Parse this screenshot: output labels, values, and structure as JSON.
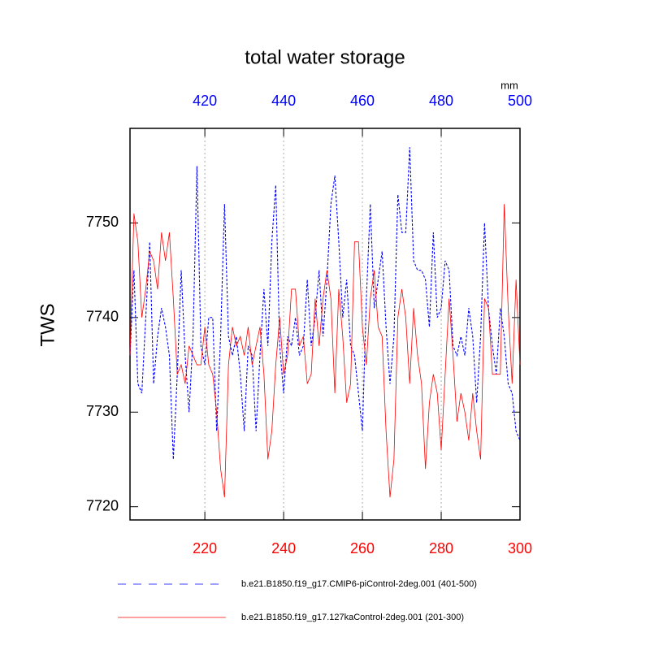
{
  "chart_data": {
    "type": "line",
    "title": "total water storage",
    "ylabel": "TWS",
    "units": "mm",
    "xlim": [
      201,
      300
    ],
    "xticks": [
      220,
      240,
      260,
      280,
      300
    ],
    "xtick_color": "#ff0000",
    "x2lim": [
      401,
      500
    ],
    "x2ticks": [
      420,
      440,
      460,
      480,
      500
    ],
    "x2tick_color": "#0000ff",
    "ylim": [
      7718.6,
      7760
    ],
    "yticks": [
      7720,
      7730,
      7740,
      7750
    ],
    "grid": "x",
    "series": [
      {
        "name": "b.e21.B1850.f19_g17.CMIP6-piControl-2deg.001 (401-500)",
        "color": "#0000ff",
        "dash": true,
        "xaxis": "x2",
        "x": [
          401,
          402,
          403,
          404,
          405,
          406,
          407,
          408,
          409,
          410,
          411,
          412,
          413,
          414,
          415,
          416,
          417,
          418,
          419,
          420,
          421,
          422,
          423,
          424,
          425,
          426,
          427,
          428,
          429,
          430,
          431,
          432,
          433,
          434,
          435,
          436,
          437,
          438,
          439,
          440,
          441,
          442,
          443,
          444,
          445,
          446,
          447,
          448,
          449,
          450,
          451,
          452,
          453,
          454,
          455,
          456,
          457,
          458,
          459,
          460,
          461,
          462,
          463,
          464,
          465,
          466,
          467,
          468,
          469,
          470,
          471,
          472,
          473,
          474,
          475,
          476,
          477,
          478,
          479,
          480,
          481,
          482,
          483,
          484,
          485,
          486,
          487,
          488,
          489,
          490,
          491,
          492,
          493,
          494,
          495,
          496,
          497,
          498,
          499,
          500
        ],
        "values": [
          7736,
          7745,
          7733,
          7732,
          7740,
          7748,
          7733,
          7738,
          7741,
          7739,
          7736,
          7725,
          7734,
          7745,
          7736,
          7730,
          7738,
          7756,
          7737,
          7735,
          7740,
          7740,
          7728,
          7738,
          7752,
          7738,
          7736,
          7738,
          7734,
          7728,
          7737,
          7736,
          7728,
          7736,
          7743,
          7737,
          7748,
          7754,
          7737,
          7732,
          7738,
          7737,
          7740,
          7736,
          7737,
          7744,
          7737,
          7740,
          7745,
          7738,
          7744,
          7752,
          7755,
          7748,
          7740,
          7744,
          7737,
          7736,
          7732,
          7728,
          7742,
          7752,
          7741,
          7744,
          7747,
          7739,
          7733,
          7738,
          7753,
          7749,
          7749,
          7758,
          7746,
          7745,
          7745,
          7744,
          7739,
          7749,
          7740,
          7741,
          7746,
          7745,
          7737,
          7736,
          7738,
          7736,
          7741,
          7738,
          7731,
          7738,
          7750,
          7741,
          7737,
          7734,
          7741,
          7738,
          7733,
          7732,
          7728,
          7727
        ]
      },
      {
        "name": "b.e21.B1850.f19_g17.127kaControl-2deg.001 (201-300)",
        "color": "#ff0000",
        "dash": false,
        "xaxis": "x",
        "x": [
          201,
          202,
          203,
          204,
          205,
          206,
          207,
          208,
          209,
          210,
          211,
          212,
          213,
          214,
          215,
          216,
          217,
          218,
          219,
          220,
          221,
          222,
          223,
          224,
          225,
          226,
          227,
          228,
          229,
          230,
          231,
          232,
          233,
          234,
          235,
          236,
          237,
          238,
          239,
          240,
          241,
          242,
          243,
          244,
          245,
          246,
          247,
          248,
          249,
          250,
          251,
          252,
          253,
          254,
          255,
          256,
          257,
          258,
          259,
          260,
          261,
          262,
          263,
          264,
          265,
          266,
          267,
          268,
          269,
          270,
          271,
          272,
          273,
          274,
          275,
          276,
          277,
          278,
          279,
          280,
          281,
          282,
          283,
          284,
          285,
          286,
          287,
          288,
          289,
          290,
          291,
          292,
          293,
          294,
          295,
          296,
          297,
          298,
          299,
          300
        ],
        "values": [
          7736,
          7751,
          7748,
          7740,
          7743,
          7747,
          7746,
          7743,
          7749,
          7746,
          7749,
          7742,
          7734,
          7735,
          7733,
          7737,
          7736,
          7735,
          7735,
          7739,
          7735,
          7734,
          7730,
          7724,
          7721,
          7735,
          7739,
          7737,
          7738,
          7736,
          7739,
          7735,
          7737,
          7739,
          7734,
          7725,
          7728,
          7735,
          7740,
          7734,
          7736,
          7743,
          7743,
          7737,
          7738,
          7733,
          7734,
          7742,
          7737,
          7742,
          7745,
          7742,
          7732,
          7743,
          7738,
          7731,
          7733,
          7748,
          7748,
          7739,
          7735,
          7742,
          7745,
          7739,
          7738,
          7728,
          7721,
          7725,
          7740,
          7743,
          7740,
          7733,
          7741,
          7736,
          7733,
          7724,
          7731,
          7734,
          7732,
          7726,
          7734,
          7742,
          7736,
          7729,
          7732,
          7730,
          7727,
          7732,
          7728,
          7725,
          7742,
          7741,
          7734,
          7734,
          7734,
          7752,
          7741,
          7733,
          7744,
          7735
        ]
      }
    ]
  }
}
